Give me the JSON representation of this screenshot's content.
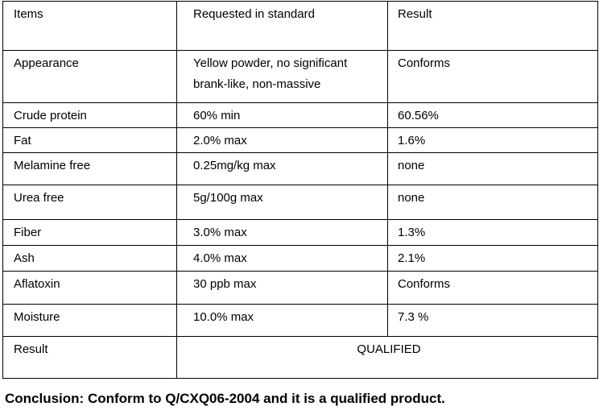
{
  "table": {
    "header": [
      "Items",
      "Requested in standard",
      "Result"
    ],
    "rows": [
      [
        "Appearance",
        "Yellow powder, no significant brank-like, non-massive",
        "Conforms"
      ],
      [
        "Crude protein",
        "60% min",
        "60.56%"
      ],
      [
        "Fat",
        "2.0% max",
        "1.6%"
      ],
      [
        "Melamine free",
        "0.25mg/kg max",
        "none"
      ],
      [
        "Urea free",
        "5g/100g max",
        "none"
      ],
      [
        "Fiber",
        "3.0% max",
        "1.3%"
      ],
      [
        "Ash",
        "4.0% max",
        "2.1%"
      ],
      [
        "Aflatoxin",
        "30 ppb max",
        "Conforms"
      ],
      [
        "Moisture",
        "10.0% max",
        "7.3 %"
      ]
    ],
    "footer": {
      "label": "Result",
      "value": "QUALIFIED"
    }
  },
  "conclusion": "Conclusion: Conform to Q/CXQ06-2004 and it is a qualified product."
}
